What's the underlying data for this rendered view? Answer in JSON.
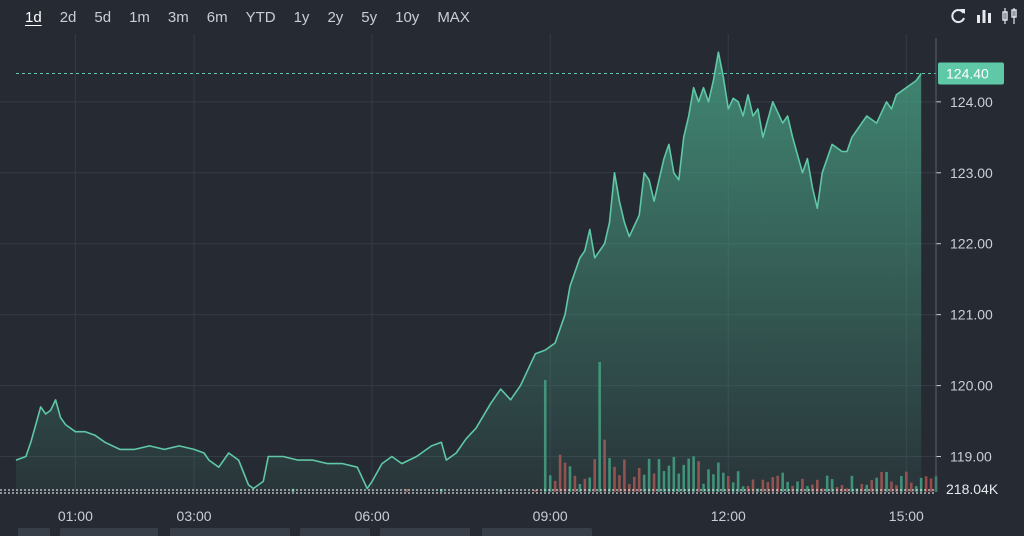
{
  "toolbar": {
    "ranges": [
      "1d",
      "2d",
      "5d",
      "1m",
      "3m",
      "6m",
      "YTD",
      "1y",
      "2y",
      "5y",
      "10y",
      "MAX"
    ],
    "active_range": "1d",
    "icons": [
      "refresh-icon",
      "bar-chart-icon",
      "candlestick-icon"
    ]
  },
  "colors": {
    "background": "#262b33",
    "line": "#5fc8a6",
    "area_top": "#4aa688",
    "grid": "#353b45",
    "volume_up": "#3f8f77",
    "volume_down": "#9a4a4a",
    "label_bg": "#5fc8a6"
  },
  "chart_data": {
    "type": "area",
    "x_tick_labels": [
      "01:00",
      "03:00",
      "06:00",
      "09:00",
      "12:00",
      "15:00"
    ],
    "y_tick_labels": [
      "119.00",
      "120.00",
      "121.00",
      "122.00",
      "123.00",
      "124.00"
    ],
    "ylim": [
      118.5,
      124.9
    ],
    "last_price_label": "124.40",
    "last_price": 124.4,
    "volume_label": "218.04K",
    "grid": true,
    "price_series": [
      {
        "t": "00:00",
        "v": 118.95
      },
      {
        "t": "00:10",
        "v": 119.0
      },
      {
        "t": "00:15",
        "v": 119.2
      },
      {
        "t": "00:20",
        "v": 119.45
      },
      {
        "t": "00:25",
        "v": 119.7
      },
      {
        "t": "00:30",
        "v": 119.6
      },
      {
        "t": "00:35",
        "v": 119.65
      },
      {
        "t": "00:40",
        "v": 119.8
      },
      {
        "t": "00:45",
        "v": 119.55
      },
      {
        "t": "00:50",
        "v": 119.45
      },
      {
        "t": "01:00",
        "v": 119.35
      },
      {
        "t": "01:10",
        "v": 119.35
      },
      {
        "t": "01:20",
        "v": 119.3
      },
      {
        "t": "01:30",
        "v": 119.2
      },
      {
        "t": "01:45",
        "v": 119.1
      },
      {
        "t": "02:00",
        "v": 119.1
      },
      {
        "t": "02:15",
        "v": 119.15
      },
      {
        "t": "02:30",
        "v": 119.1
      },
      {
        "t": "02:45",
        "v": 119.15
      },
      {
        "t": "03:00",
        "v": 119.1
      },
      {
        "t": "03:10",
        "v": 119.05
      },
      {
        "t": "03:15",
        "v": 118.95
      },
      {
        "t": "03:25",
        "v": 118.85
      },
      {
        "t": "03:35",
        "v": 119.05
      },
      {
        "t": "03:45",
        "v": 118.95
      },
      {
        "t": "03:55",
        "v": 118.6
      },
      {
        "t": "04:00",
        "v": 118.55
      },
      {
        "t": "04:10",
        "v": 118.65
      },
      {
        "t": "04:15",
        "v": 119.0
      },
      {
        "t": "04:30",
        "v": 119.0
      },
      {
        "t": "04:45",
        "v": 118.95
      },
      {
        "t": "05:00",
        "v": 118.95
      },
      {
        "t": "05:15",
        "v": 118.9
      },
      {
        "t": "05:30",
        "v": 118.9
      },
      {
        "t": "05:45",
        "v": 118.85
      },
      {
        "t": "05:50",
        "v": 118.7
      },
      {
        "t": "05:55",
        "v": 118.55
      },
      {
        "t": "06:00",
        "v": 118.65
      },
      {
        "t": "06:10",
        "v": 118.9
      },
      {
        "t": "06:20",
        "v": 119.0
      },
      {
        "t": "06:30",
        "v": 118.9
      },
      {
        "t": "06:45",
        "v": 119.0
      },
      {
        "t": "07:00",
        "v": 119.15
      },
      {
        "t": "07:10",
        "v": 119.2
      },
      {
        "t": "07:15",
        "v": 118.95
      },
      {
        "t": "07:25",
        "v": 119.05
      },
      {
        "t": "07:35",
        "v": 119.25
      },
      {
        "t": "07:45",
        "v": 119.4
      },
      {
        "t": "08:00",
        "v": 119.75
      },
      {
        "t": "08:10",
        "v": 119.95
      },
      {
        "t": "08:20",
        "v": 119.8
      },
      {
        "t": "08:30",
        "v": 120.0
      },
      {
        "t": "08:40",
        "v": 120.3
      },
      {
        "t": "08:45",
        "v": 120.45
      },
      {
        "t": "08:55",
        "v": 120.5
      },
      {
        "t": "09:05",
        "v": 120.6
      },
      {
        "t": "09:15",
        "v": 121.0
      },
      {
        "t": "09:20",
        "v": 121.4
      },
      {
        "t": "09:30",
        "v": 121.8
      },
      {
        "t": "09:35",
        "v": 121.9
      },
      {
        "t": "09:40",
        "v": 122.2
      },
      {
        "t": "09:45",
        "v": 121.8
      },
      {
        "t": "09:55",
        "v": 122.0
      },
      {
        "t": "10:00",
        "v": 122.3
      },
      {
        "t": "10:05",
        "v": 123.0
      },
      {
        "t": "10:10",
        "v": 122.6
      },
      {
        "t": "10:15",
        "v": 122.3
      },
      {
        "t": "10:20",
        "v": 122.1
      },
      {
        "t": "10:30",
        "v": 122.4
      },
      {
        "t": "10:35",
        "v": 123.0
      },
      {
        "t": "10:40",
        "v": 122.9
      },
      {
        "t": "10:45",
        "v": 122.6
      },
      {
        "t": "10:50",
        "v": 122.9
      },
      {
        "t": "10:55",
        "v": 123.2
      },
      {
        "t": "11:00",
        "v": 123.4
      },
      {
        "t": "11:05",
        "v": 123.0
      },
      {
        "t": "11:10",
        "v": 122.9
      },
      {
        "t": "11:15",
        "v": 123.5
      },
      {
        "t": "11:20",
        "v": 123.8
      },
      {
        "t": "11:25",
        "v": 124.2
      },
      {
        "t": "11:30",
        "v": 124.0
      },
      {
        "t": "11:35",
        "v": 124.2
      },
      {
        "t": "11:40",
        "v": 124.0
      },
      {
        "t": "11:45",
        "v": 124.3
      },
      {
        "t": "11:50",
        "v": 124.7
      },
      {
        "t": "11:55",
        "v": 124.35
      },
      {
        "t": "12:00",
        "v": 123.9
      },
      {
        "t": "12:05",
        "v": 124.05
      },
      {
        "t": "12:10",
        "v": 124.0
      },
      {
        "t": "12:15",
        "v": 123.8
      },
      {
        "t": "12:20",
        "v": 124.1
      },
      {
        "t": "12:25",
        "v": 123.8
      },
      {
        "t": "12:30",
        "v": 123.9
      },
      {
        "t": "12:35",
        "v": 123.5
      },
      {
        "t": "12:45",
        "v": 124.0
      },
      {
        "t": "12:55",
        "v": 123.7
      },
      {
        "t": "13:00",
        "v": 123.8
      },
      {
        "t": "13:05",
        "v": 123.5
      },
      {
        "t": "13:15",
        "v": 123.0
      },
      {
        "t": "13:20",
        "v": 123.2
      },
      {
        "t": "13:25",
        "v": 122.8
      },
      {
        "t": "13:30",
        "v": 122.5
      },
      {
        "t": "13:35",
        "v": 123.0
      },
      {
        "t": "13:45",
        "v": 123.4
      },
      {
        "t": "13:55",
        "v": 123.3
      },
      {
        "t": "14:00",
        "v": 123.3
      },
      {
        "t": "14:05",
        "v": 123.5
      },
      {
        "t": "14:15",
        "v": 123.7
      },
      {
        "t": "14:20",
        "v": 123.8
      },
      {
        "t": "14:30",
        "v": 123.7
      },
      {
        "t": "14:40",
        "v": 124.0
      },
      {
        "t": "14:45",
        "v": 123.9
      },
      {
        "t": "14:50",
        "v": 124.1
      },
      {
        "t": "15:00",
        "v": 124.2
      },
      {
        "t": "15:10",
        "v": 124.3
      },
      {
        "t": "15:15",
        "v": 124.4
      }
    ]
  }
}
